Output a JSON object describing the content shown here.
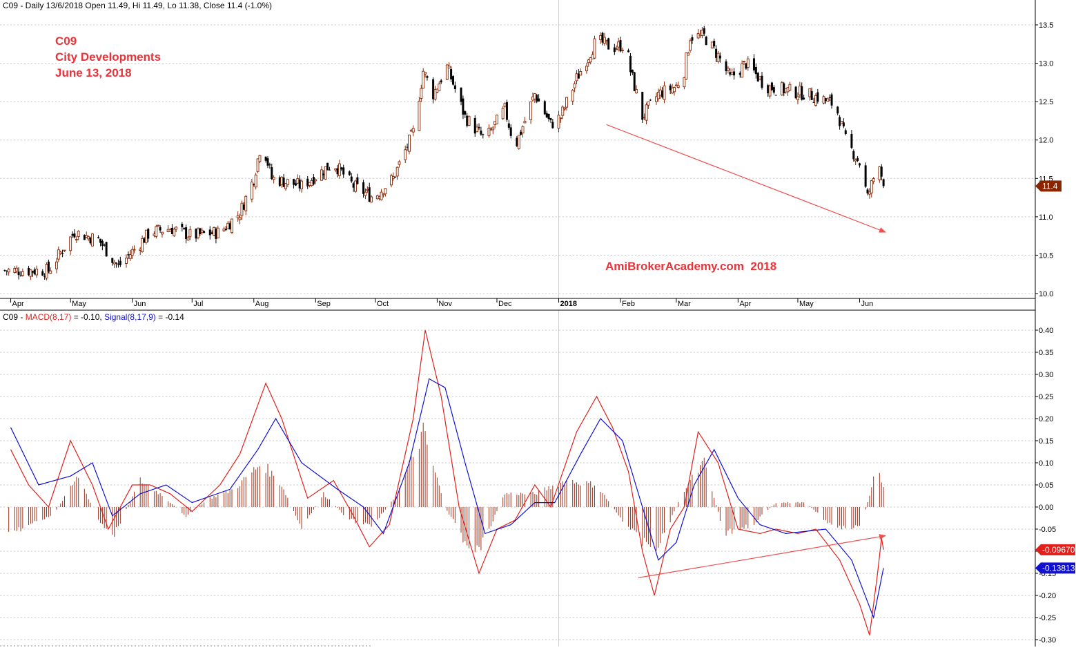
{
  "price_panel": {
    "header": "C09 - Daily 13/6/2018 Open 11.49, Hi 11.49, Lo 11.38, Close 11.4 (-1.0%)",
    "titles": [
      "C09",
      "City Developments",
      "June 13, 2018"
    ],
    "watermark": "AmiBrokerAcademy.com  2018",
    "last_price_label": "11.4"
  },
  "macd_panel": {
    "header_prefix": "C09 - ",
    "macd_label": "MACD(8,17)",
    "macd_value_text": " = -0.10, ",
    "signal_label": "Signal(8,17,9)",
    "signal_value_text": " = -0.14",
    "macd_last_label": "-0.09670",
    "signal_last_label": "-0.13813"
  },
  "colors": {
    "up_candle": "#8b2500",
    "down_candle": "#000000",
    "macd_line": "#e0201c",
    "signal_line": "#1010d0",
    "histogram": "#a0301a",
    "title_text": "#e8333a",
    "annotation_arrow": "#f05050",
    "grid": "#c8c8c8"
  },
  "chart_data": [
    {
      "type": "candlestick",
      "title": "C09 - Daily 13/6/2018 Open 11.49, Hi 11.49, Lo 11.38, Close 11.4 (-1.0%)",
      "ylim": [
        9.9,
        13.7
      ],
      "y_ticks": [
        "10.0",
        "10.5",
        "11.0",
        "11.5",
        "12.0",
        "12.5",
        "13.0",
        "13.5"
      ],
      "x_labels": [
        "Apr",
        "May",
        "Jun",
        "Jul",
        "Aug",
        "Sep",
        "Oct",
        "Nov",
        "Dec",
        "2018",
        "Feb",
        "Mar",
        "Apr",
        "May",
        "Jun"
      ],
      "grid": true,
      "close_path": [
        [
          "2017-04-01",
          10.3
        ],
        [
          "2017-04-20",
          10.3
        ],
        [
          "2017-05-03",
          10.8
        ],
        [
          "2017-05-15",
          10.7
        ],
        [
          "2017-05-25",
          10.35
        ],
        [
          "2017-06-10",
          10.8
        ],
        [
          "2017-06-20",
          10.85
        ],
        [
          "2017-07-01",
          10.75
        ],
        [
          "2017-07-15",
          10.8
        ],
        [
          "2017-07-25",
          11.05
        ],
        [
          "2017-08-01",
          11.5
        ],
        [
          "2017-08-05",
          12.0
        ],
        [
          "2017-08-10",
          11.5
        ],
        [
          "2017-08-25",
          11.4
        ],
        [
          "2017-09-10",
          11.7
        ],
        [
          "2017-09-20",
          11.4
        ],
        [
          "2017-09-30",
          11.25
        ],
        [
          "2017-10-10",
          11.5
        ],
        [
          "2017-10-20",
          12.1
        ],
        [
          "2017-10-25",
          12.9
        ],
        [
          "2017-10-30",
          12.6
        ],
        [
          "2017-11-06",
          12.95
        ],
        [
          "2017-11-15",
          12.3
        ],
        [
          "2017-11-25",
          12.0
        ],
        [
          "2017-12-05",
          12.4
        ],
        [
          "2017-12-10",
          11.9
        ],
        [
          "2017-12-20",
          12.6
        ],
        [
          "2017-12-28",
          12.2
        ],
        [
          "2018-01-02",
          12.3
        ],
        [
          "2018-01-10",
          12.8
        ],
        [
          "2018-01-20",
          13.3
        ],
        [
          "2018-01-28",
          13.2
        ],
        [
          "2018-02-04",
          13.25
        ],
        [
          "2018-02-06",
          12.9
        ],
        [
          "2018-02-12",
          12.3
        ],
        [
          "2018-02-20",
          12.6
        ],
        [
          "2018-03-01",
          12.7
        ],
        [
          "2018-03-05",
          12.9
        ],
        [
          "2018-03-08",
          13.35
        ],
        [
          "2018-03-15",
          13.35
        ],
        [
          "2018-03-22",
          13.1
        ],
        [
          "2018-03-28",
          12.8
        ],
        [
          "2018-04-05",
          13.0
        ],
        [
          "2018-04-15",
          12.7
        ],
        [
          "2018-04-25",
          12.65
        ],
        [
          "2018-05-05",
          12.6
        ],
        [
          "2018-05-12",
          12.55
        ],
        [
          "2018-05-20",
          12.45
        ],
        [
          "2018-05-25",
          12.0
        ],
        [
          "2018-06-01",
          11.7
        ],
        [
          "2018-06-05",
          11.25
        ],
        [
          "2018-06-08",
          11.5
        ],
        [
          "2018-06-10",
          11.9
        ],
        [
          "2018-06-12",
          11.55
        ],
        [
          "2018-06-13",
          11.4
        ]
      ],
      "last": {
        "date": "2018-06-13",
        "open": 11.49,
        "high": 11.49,
        "low": 11.38,
        "close": 11.4,
        "change_pct": -1.0
      },
      "trendline": {
        "from": [
          "2018-01-25",
          12.2
        ],
        "to": [
          "2018-06-14",
          10.8
        ]
      }
    },
    {
      "type": "line",
      "title": "C09 - MACD(8,17) = -0.10, Signal(8,17,9) = -0.14",
      "ylim": [
        -0.31,
        0.41
      ],
      "y_ticks": [
        "0.40",
        "0.35",
        "0.30",
        "0.25",
        "0.20",
        "0.15",
        "0.10",
        "0.05",
        "0.00",
        "-0.05",
        "-0.10",
        "-0.15",
        "-0.20",
        "-0.25",
        "-0.30"
      ],
      "grid": true,
      "series": [
        {
          "name": "MACD(8,17)",
          "color": "#e0201c",
          "points": [
            [
              "2017-04-01",
              0.13
            ],
            [
              "2017-04-10",
              0.05
            ],
            [
              "2017-04-20",
              0.0
            ],
            [
              "2017-05-01",
              0.15
            ],
            [
              "2017-05-12",
              0.05
            ],
            [
              "2017-05-20",
              -0.05
            ],
            [
              "2017-06-01",
              0.05
            ],
            [
              "2017-06-10",
              0.05
            ],
            [
              "2017-06-20",
              0.03
            ],
            [
              "2017-07-01",
              -0.01
            ],
            [
              "2017-07-15",
              0.05
            ],
            [
              "2017-07-25",
              0.12
            ],
            [
              "2017-08-07",
              0.28
            ],
            [
              "2017-08-15",
              0.2
            ],
            [
              "2017-08-28",
              0.02
            ],
            [
              "2017-09-10",
              0.06
            ],
            [
              "2017-09-20",
              -0.02
            ],
            [
              "2017-09-28",
              -0.09
            ],
            [
              "2017-10-08",
              -0.04
            ],
            [
              "2017-10-20",
              0.2
            ],
            [
              "2017-10-26",
              0.4
            ],
            [
              "2017-11-03",
              0.25
            ],
            [
              "2017-11-12",
              0.0
            ],
            [
              "2017-11-22",
              -0.15
            ],
            [
              "2017-12-01",
              -0.05
            ],
            [
              "2017-12-10",
              -0.03
            ],
            [
              "2017-12-20",
              0.05
            ],
            [
              "2017-12-28",
              0.0
            ],
            [
              "2018-01-10",
              0.17
            ],
            [
              "2018-01-20",
              0.25
            ],
            [
              "2018-01-28",
              0.18
            ],
            [
              "2018-02-05",
              0.08
            ],
            [
              "2018-02-12",
              -0.1
            ],
            [
              "2018-02-18",
              -0.2
            ],
            [
              "2018-02-26",
              -0.05
            ],
            [
              "2018-03-05",
              0.0
            ],
            [
              "2018-03-12",
              0.17
            ],
            [
              "2018-03-22",
              0.1
            ],
            [
              "2018-04-01",
              -0.05
            ],
            [
              "2018-04-12",
              -0.06
            ],
            [
              "2018-04-20",
              -0.05
            ],
            [
              "2018-05-01",
              -0.06
            ],
            [
              "2018-05-10",
              -0.05
            ],
            [
              "2018-05-22",
              -0.12
            ],
            [
              "2018-06-01",
              -0.22
            ],
            [
              "2018-06-06",
              -0.29
            ],
            [
              "2018-06-10",
              -0.15
            ],
            [
              "2018-06-12",
              -0.07
            ],
            [
              "2018-06-13",
              -0.0967
            ]
          ]
        },
        {
          "name": "Signal(8,17,9)",
          "color": "#1010d0",
          "points": [
            [
              "2017-04-01",
              0.18
            ],
            [
              "2017-04-15",
              0.05
            ],
            [
              "2017-05-01",
              0.07
            ],
            [
              "2017-05-12",
              0.1
            ],
            [
              "2017-05-22",
              -0.02
            ],
            [
              "2017-06-05",
              0.03
            ],
            [
              "2017-06-18",
              0.05
            ],
            [
              "2017-07-01",
              0.01
            ],
            [
              "2017-07-20",
              0.04
            ],
            [
              "2017-08-03",
              0.13
            ],
            [
              "2017-08-12",
              0.2
            ],
            [
              "2017-08-25",
              0.1
            ],
            [
              "2017-09-12",
              0.04
            ],
            [
              "2017-09-25",
              0.0
            ],
            [
              "2017-10-05",
              -0.06
            ],
            [
              "2017-10-18",
              0.1
            ],
            [
              "2017-10-28",
              0.29
            ],
            [
              "2017-11-05",
              0.27
            ],
            [
              "2017-11-15",
              0.1
            ],
            [
              "2017-11-25",
              -0.06
            ],
            [
              "2017-12-08",
              -0.04
            ],
            [
              "2017-12-20",
              0.01
            ],
            [
              "2017-12-30",
              0.01
            ],
            [
              "2018-01-12",
              0.12
            ],
            [
              "2018-01-22",
              0.2
            ],
            [
              "2018-02-02",
              0.15
            ],
            [
              "2018-02-12",
              0.0
            ],
            [
              "2018-02-20",
              -0.12
            ],
            [
              "2018-03-01",
              -0.08
            ],
            [
              "2018-03-10",
              0.05
            ],
            [
              "2018-03-20",
              0.13
            ],
            [
              "2018-04-01",
              0.02
            ],
            [
              "2018-04-12",
              -0.04
            ],
            [
              "2018-04-25",
              -0.06
            ],
            [
              "2018-05-15",
              -0.05
            ],
            [
              "2018-05-28",
              -0.12
            ],
            [
              "2018-06-08",
              -0.25
            ],
            [
              "2018-06-13",
              -0.13813
            ]
          ]
        },
        {
          "name": "Histogram",
          "type": "bar",
          "color": "#a0301a",
          "points": [
            [
              "2017-04-05",
              -0.05
            ],
            [
              "2017-04-22",
              -0.02
            ],
            [
              "2017-05-05",
              0.07
            ],
            [
              "2017-05-15",
              -0.03
            ],
            [
              "2017-05-22",
              -0.07
            ],
            [
              "2017-06-05",
              0.06
            ],
            [
              "2017-06-15",
              0.03
            ],
            [
              "2017-06-28",
              -0.02
            ],
            [
              "2017-07-10",
              0.02
            ],
            [
              "2017-07-22",
              0.04
            ],
            [
              "2017-08-05",
              0.1
            ],
            [
              "2017-08-15",
              0.05
            ],
            [
              "2017-08-25",
              -0.05
            ],
            [
              "2017-09-05",
              0.03
            ],
            [
              "2017-09-18",
              -0.03
            ],
            [
              "2017-09-30",
              -0.04
            ],
            [
              "2017-10-12",
              0.03
            ],
            [
              "2017-10-25",
              0.17
            ],
            [
              "2017-11-05",
              0.0
            ],
            [
              "2017-11-15",
              -0.08
            ],
            [
              "2017-11-22",
              -0.1
            ],
            [
              "2017-12-05",
              0.03
            ],
            [
              "2017-12-20",
              0.03
            ],
            [
              "2018-01-05",
              0.06
            ],
            [
              "2018-01-20",
              0.05
            ],
            [
              "2018-02-02",
              -0.03
            ],
            [
              "2018-02-12",
              -0.08
            ],
            [
              "2018-02-20",
              -0.09
            ],
            [
              "2018-03-05",
              0.04
            ],
            [
              "2018-03-15",
              0.1
            ],
            [
              "2018-03-25",
              -0.06
            ],
            [
              "2018-04-08",
              -0.04
            ],
            [
              "2018-04-20",
              0.01
            ],
            [
              "2018-05-05",
              0.01
            ],
            [
              "2018-05-20",
              -0.05
            ],
            [
              "2018-06-02",
              -0.04
            ],
            [
              "2018-06-10",
              0.1
            ],
            [
              "2018-06-13",
              0.04
            ]
          ]
        }
      ],
      "trendline": {
        "from": [
          "2018-02-10",
          -0.16
        ],
        "to": [
          "2018-06-14",
          -0.065
        ]
      }
    }
  ]
}
